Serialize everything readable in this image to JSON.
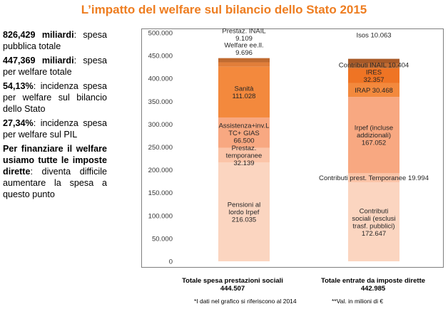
{
  "title": "L’impatto del welfare sul bilancio dello Stato 2015",
  "left_panel": [
    {
      "bold": "826,429",
      "gap": " ",
      "bold2": "miliardi",
      "rest": ": spesa pubblica totale"
    },
    {
      "bold": "447,369",
      "gap": " ",
      "bold2": "miliardi",
      "rest": ": spesa per welfare totale"
    },
    {
      "bold": "54,13%",
      "gap": "",
      "bold2": "",
      "rest": ": incidenza spesa per welfare sul bilancio dello Stato"
    },
    {
      "bold": "27,34%",
      "gap": "",
      "bold2": "",
      "rest": ": incidenza spesa per welfare sul PIL"
    },
    {
      "bold": "Per finanziare il welfare usiamo tutte le imposte dirette",
      "gap": "",
      "bold2": "",
      "rest": ": diventa difficile aumentare la spesa a questo punto"
    }
  ],
  "footnotes": {
    "left": "*I dati nel grafico si riferiscono al 2014",
    "right": "**Val. in milioni di €"
  },
  "chart_data": {
    "type": "bar",
    "stacked": true,
    "ylim": [
      0,
      500000
    ],
    "yticks": [
      "0",
      "50.000",
      "100.000",
      "150.000",
      "200.000",
      "250.000",
      "300.000",
      "350.000",
      "400.000",
      "450.000",
      "500.000"
    ],
    "grid": false,
    "bars": [
      {
        "category_line1": "Totale spesa prestazioni sociali",
        "category_line2": "444.507",
        "segments": [
          {
            "label": "Pensioni al lordo Irpef",
            "value": 216035,
            "value_label": "216.035",
            "color": "#fbd5c0"
          },
          {
            "label": "Prestaz. temporanee",
            "value": 32139,
            "value_label": "32.139",
            "color": "#fbc4a8"
          },
          {
            "label": "Assistenza+inv.L TC+ GIAS",
            "value": 66500,
            "value_label": "66.500",
            "color": "#f8a881"
          },
          {
            "label": "Sanità",
            "value": 111028,
            "value_label": "111.028",
            "color": "#f3893d"
          },
          {
            "label": "Welfare ee.ll.",
            "value": 9696,
            "value_label": "9.696",
            "color": "#e17e3a"
          },
          {
            "label": "Prestaz. INAIL",
            "value": 9109,
            "value_label": "9.109",
            "color": "#c06a30"
          }
        ]
      },
      {
        "category_line1": "Totale entrate  da imposte dirette",
        "category_line2": "442.985",
        "segments": [
          {
            "label": "Contributi sociali (esclusi trasf. pubblici)",
            "value": 172647,
            "value_label": "172.647",
            "color": "#fbd5c0"
          },
          {
            "label": "Contributi prest. Temporanee",
            "value": 19994,
            "value_label": "19.994",
            "color": "#fbc4a8"
          },
          {
            "label": "Irpef (incluse addizionali)",
            "value": 167052,
            "value_label": "167.052",
            "color": "#f8a881"
          },
          {
            "label": "IRAP",
            "value": 30468,
            "value_label": "30.468",
            "color": "#f3893d"
          },
          {
            "label": "IRES",
            "value": 32357,
            "value_label": "32.357",
            "color": "#ef7424"
          },
          {
            "label": "Contributi INAIL",
            "value": 10404,
            "value_label": "10.404",
            "color": "#c06a30"
          },
          {
            "label": "Isos",
            "value": 10063,
            "value_label": "10.063",
            "color": "#a85a28"
          }
        ]
      }
    ]
  }
}
